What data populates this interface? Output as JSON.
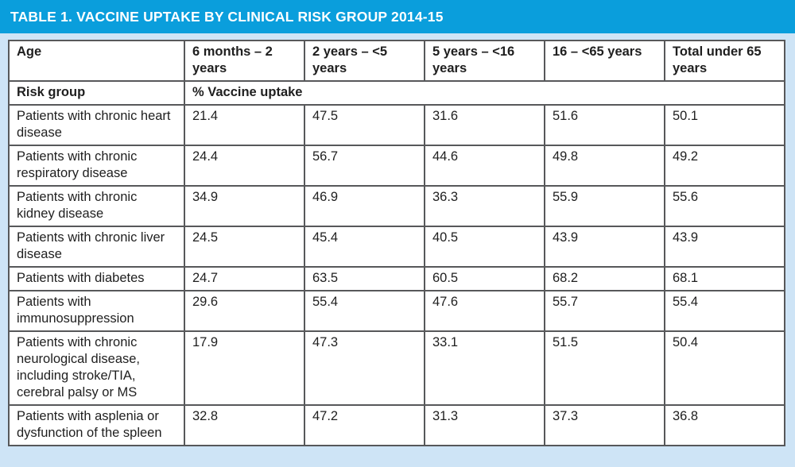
{
  "title": "TABLE 1. VACCINE UPTAKE BY CLINICAL RISK GROUP 2014-15",
  "colors": {
    "title_bar": "#0a9edc",
    "page_background": "#cee4f6",
    "table_border": "#57585a",
    "title_text": "#ffffff",
    "body_text": "#1f1f1f"
  },
  "table": {
    "columns": [
      "Age",
      "6 months – 2 years",
      "2 years – <5 years",
      "5 years – <16 years",
      "16 – <65 years",
      "Total under 65 years"
    ],
    "subheader": {
      "label": "Risk group",
      "value_label": "% Vaccine uptake"
    },
    "rows": [
      {
        "risk_group": "Patients with chronic heart disease",
        "values": [
          "21.4",
          "47.5",
          "31.6",
          "51.6",
          "50.1"
        ]
      },
      {
        "risk_group": "Patients with chronic respiratory disease",
        "values": [
          "24.4",
          "56.7",
          "44.6",
          "49.8",
          "49.2"
        ]
      },
      {
        "risk_group": "Patients with chronic kidney disease",
        "values": [
          "34.9",
          "46.9",
          "36.3",
          "55.9",
          "55.6"
        ]
      },
      {
        "risk_group": "Patients with chronic liver disease",
        "values": [
          "24.5",
          "45.4",
          "40.5",
          "43.9",
          "43.9"
        ]
      },
      {
        "risk_group": "Patients with diabetes",
        "values": [
          "24.7",
          "63.5",
          "60.5",
          "68.2",
          "68.1"
        ]
      },
      {
        "risk_group": "Patients with immunosuppression",
        "values": [
          "29.6",
          "55.4",
          "47.6",
          "55.7",
          "55.4"
        ]
      },
      {
        "risk_group": "Patients with chronic neurological disease, including stroke/TIA, cerebral palsy or MS",
        "values": [
          "17.9",
          "47.3",
          "33.1",
          "51.5",
          "50.4"
        ]
      },
      {
        "risk_group": "Patients with asplenia or dysfunction of the spleen",
        "values": [
          "32.8",
          "47.2",
          "31.3",
          "37.3",
          "36.8"
        ]
      }
    ]
  }
}
